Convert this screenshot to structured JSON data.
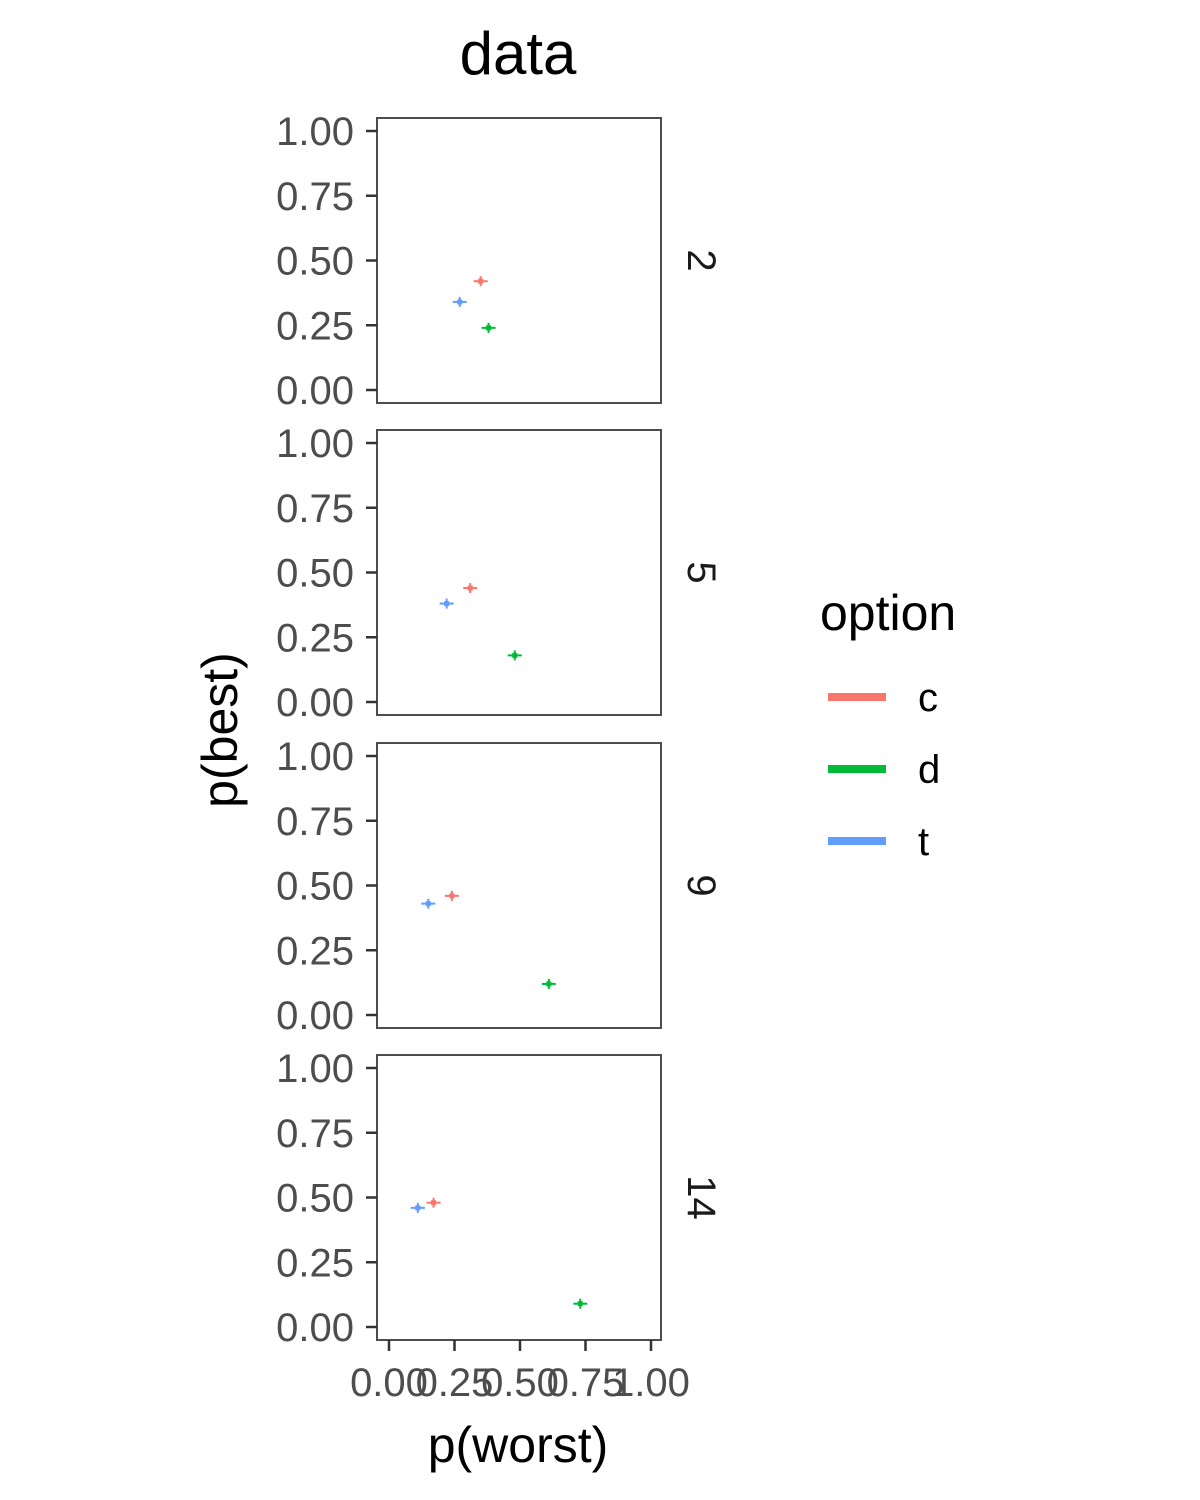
{
  "chart_data": {
    "type": "scatter",
    "title": "data",
    "xlabel": "p(worst)",
    "ylabel": "p(best)",
    "xlim": [
      0,
      1
    ],
    "ylim": [
      0,
      1
    ],
    "x_ticks": [
      "0.00",
      "0.25",
      "0.50",
      "0.75",
      "1.00"
    ],
    "y_ticks": [
      "0.00",
      "0.25",
      "0.50",
      "0.75",
      "1.00"
    ],
    "grid": false,
    "legend": {
      "title": "option",
      "placement": "right",
      "entries": [
        {
          "label": "c",
          "color": "#F8766D"
        },
        {
          "label": "d",
          "color": "#00BA38"
        },
        {
          "label": "t",
          "color": "#619CFF"
        }
      ]
    },
    "facets": [
      {
        "label": "2",
        "points": [
          {
            "series": "c",
            "x": 0.35,
            "y": 0.42
          },
          {
            "series": "d",
            "x": 0.38,
            "y": 0.24
          },
          {
            "series": "t",
            "x": 0.27,
            "y": 0.34
          }
        ]
      },
      {
        "label": "5",
        "points": [
          {
            "series": "c",
            "x": 0.31,
            "y": 0.44
          },
          {
            "series": "d",
            "x": 0.48,
            "y": 0.18
          },
          {
            "series": "t",
            "x": 0.22,
            "y": 0.38
          }
        ]
      },
      {
        "label": "9",
        "points": [
          {
            "series": "c",
            "x": 0.24,
            "y": 0.46
          },
          {
            "series": "d",
            "x": 0.61,
            "y": 0.12
          },
          {
            "series": "t",
            "x": 0.15,
            "y": 0.43
          }
        ]
      },
      {
        "label": "14",
        "points": [
          {
            "series": "c",
            "x": 0.17,
            "y": 0.48
          },
          {
            "series": "d",
            "x": 0.73,
            "y": 0.09
          },
          {
            "series": "t",
            "x": 0.11,
            "y": 0.46
          }
        ]
      }
    ]
  }
}
